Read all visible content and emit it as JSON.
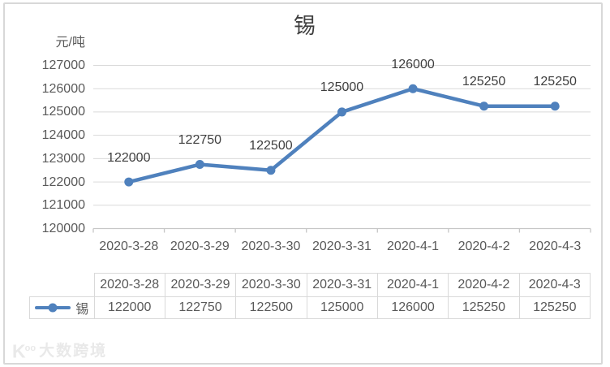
{
  "chart_data": {
    "type": "line",
    "title": "锡",
    "ylabel": "元/吨",
    "categories": [
      "2020-3-28",
      "2020-3-29",
      "2020-3-30",
      "2020-3-31",
      "2020-4-1",
      "2020-4-2",
      "2020-4-3"
    ],
    "series": [
      {
        "name": "锡",
        "values": [
          122000,
          122750,
          122500,
          125000,
          126000,
          125250,
          125250
        ]
      }
    ],
    "ylim": [
      120000,
      127000
    ],
    "yticks": [
      120000,
      121000,
      122000,
      123000,
      124000,
      125000,
      126000,
      127000
    ],
    "grid": true,
    "data_labels": true,
    "legend_position": "table-left",
    "line_color": "#4f81bd",
    "grid_color": "#d9d9d9",
    "axis_color": "#c6c6c6"
  },
  "watermark": {
    "logo": "K",
    "logo_sup": "oo",
    "text": "大数跨境"
  }
}
